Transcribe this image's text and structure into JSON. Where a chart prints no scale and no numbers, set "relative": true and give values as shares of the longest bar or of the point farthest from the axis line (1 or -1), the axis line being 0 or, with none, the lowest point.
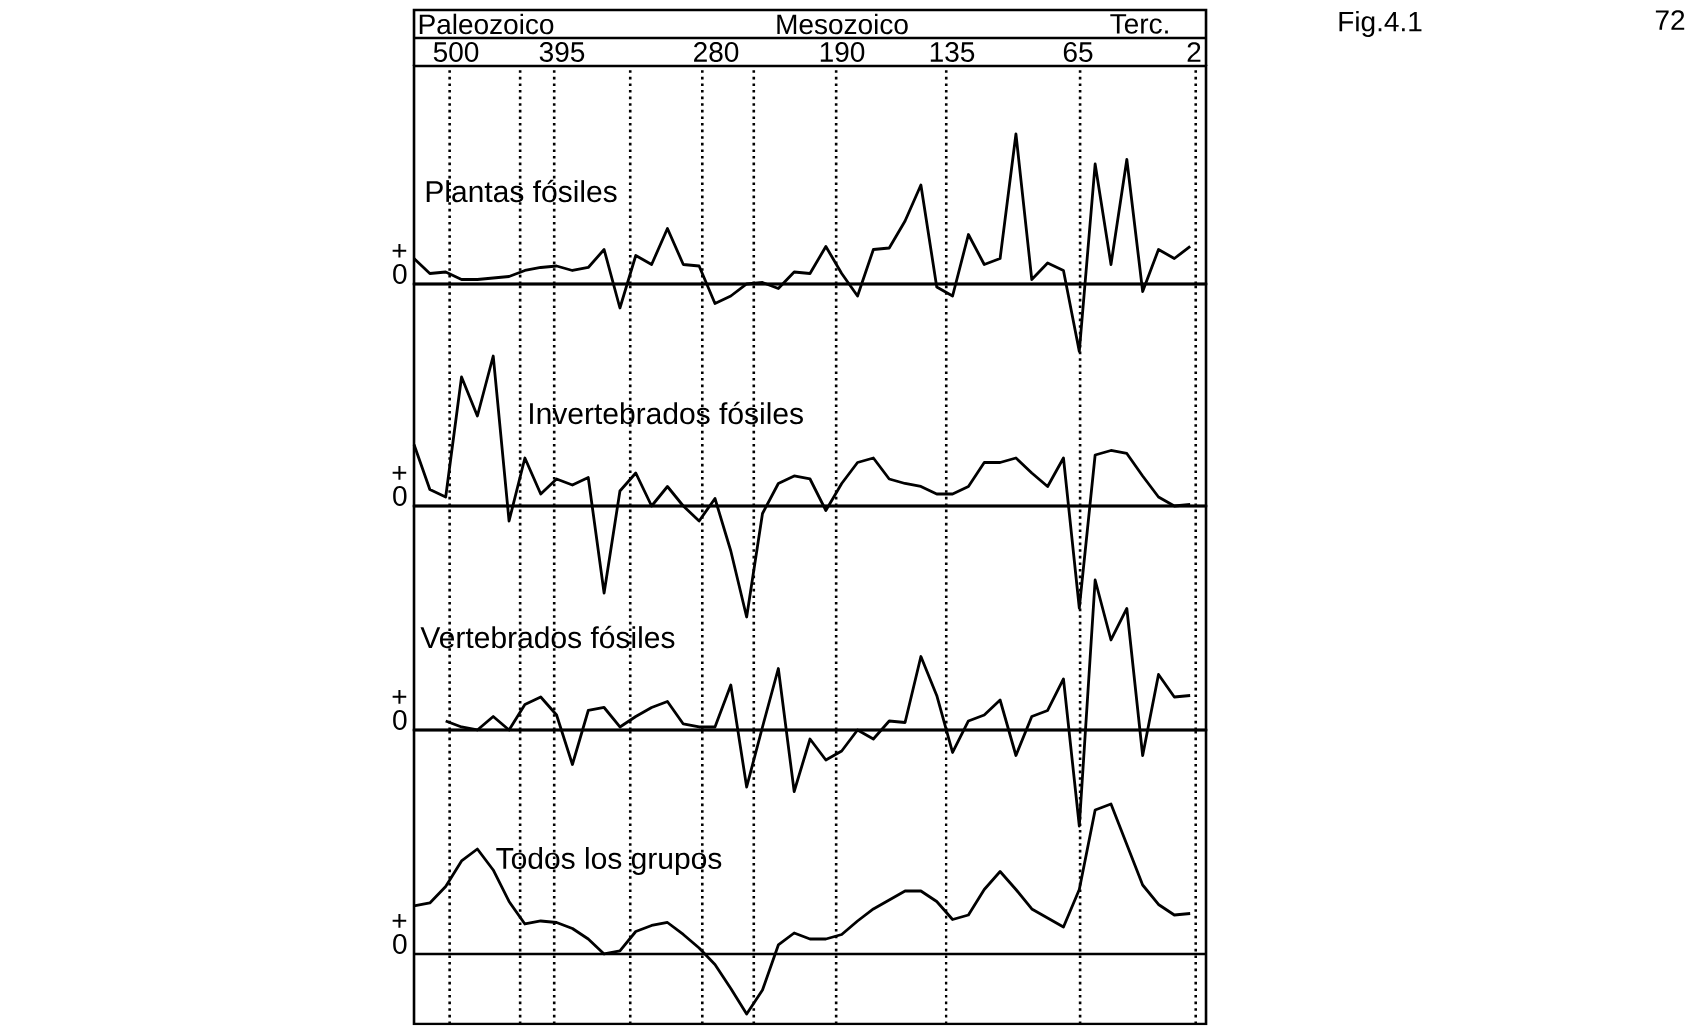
{
  "chart_data": [
    {
      "type": "line",
      "relative": true,
      "title": "Plantas fósiles",
      "color": "#000000",
      "grid": "x",
      "categories": [
        null,
        null,
        null,
        null,
        null,
        null,
        null,
        null,
        null,
        null,
        null,
        null,
        null,
        null,
        null,
        null,
        null,
        null,
        null,
        null,
        null,
        null,
        null,
        null,
        null,
        null,
        null,
        null,
        null,
        null,
        null,
        null,
        null,
        null,
        null,
        null,
        null,
        null,
        null,
        null,
        null,
        null,
        null,
        null,
        null,
        null,
        null,
        null,
        null,
        null,
        null
      ],
      "annotations": [
        "+",
        "0",
        "Fig.4.1",
        "72",
        "Paleozoico",
        "Mesozoico",
        "Terc.",
        "500",
        "395",
        "280",
        "190",
        "135",
        "65",
        "2"
      ],
      "values": [
        0.17,
        0.07,
        0.08,
        0.03,
        0.03,
        0.04,
        0.05,
        0.09,
        0.11,
        0.12,
        0.09,
        0.11,
        0.23,
        -0.16,
        0.19,
        0.13,
        0.37,
        0.13,
        0.12,
        -0.13,
        -0.08,
        0.0,
        0.01,
        -0.03,
        0.08,
        0.07,
        0.25,
        0.07,
        -0.08,
        0.23,
        0.24,
        0.42,
        0.66,
        -0.02,
        -0.08,
        0.33,
        0.13,
        0.17,
        1.0,
        0.03,
        0.14,
        0.09,
        -0.45,
        0.8,
        0.13,
        0.83,
        -0.05,
        0.23,
        0.17,
        0.25,
        null
      ]
    },
    {
      "type": "line",
      "relative": true,
      "title": "Invertebrados fósiles",
      "color": "#000000",
      "grid": "x",
      "categories": [
        null,
        null,
        null,
        null,
        null,
        null,
        null,
        null,
        null,
        null,
        null,
        null,
        null,
        null,
        null,
        null,
        null,
        null,
        null,
        null,
        null,
        null,
        null,
        null,
        null,
        null,
        null,
        null,
        null,
        null,
        null,
        null,
        null,
        null,
        null,
        null,
        null,
        null,
        null,
        null,
        null,
        null,
        null,
        null,
        null,
        null,
        null,
        null,
        null,
        null,
        null
      ],
      "annotations": [
        "+",
        "0"
      ],
      "values": [
        0.41,
        0.11,
        0.06,
        0.86,
        0.6,
        1.0,
        -0.1,
        0.32,
        0.08,
        0.18,
        0.14,
        0.19,
        -0.58,
        0.1,
        0.22,
        0.0,
        0.13,
        0.0,
        -0.1,
        0.05,
        -0.3,
        -0.74,
        -0.05,
        0.15,
        0.2,
        0.18,
        -0.03,
        0.15,
        0.29,
        0.32,
        0.18,
        0.15,
        0.13,
        0.08,
        0.08,
        0.13,
        0.29,
        0.29,
        0.32,
        0.22,
        0.13,
        0.32,
        -0.68,
        0.34,
        0.37,
        0.35,
        0.2,
        0.06,
        0.0,
        0.01,
        null
      ]
    },
    {
      "type": "line",
      "relative": true,
      "title": "Vertebrados fósiles",
      "color": "#000000",
      "grid": "x",
      "categories": [
        null,
        null,
        null,
        null,
        null,
        null,
        null,
        null,
        null,
        null,
        null,
        null,
        null,
        null,
        null,
        null,
        null,
        null,
        null,
        null,
        null,
        null,
        null,
        null,
        null,
        null,
        null,
        null,
        null,
        null,
        null,
        null,
        null,
        null,
        null,
        null,
        null,
        null,
        null,
        null,
        null,
        null,
        null,
        null,
        null,
        null,
        null,
        null,
        null,
        null,
        null
      ],
      "annotations": [
        "+",
        "0"
      ],
      "values": [
        null,
        null,
        0.06,
        0.02,
        0.0,
        0.09,
        0.0,
        0.17,
        0.22,
        0.1,
        -0.23,
        0.13,
        0.15,
        0.02,
        0.09,
        0.15,
        0.19,
        0.04,
        0.02,
        0.02,
        0.3,
        -0.38,
        0.02,
        0.41,
        -0.41,
        -0.06,
        -0.2,
        -0.14,
        0.0,
        -0.06,
        0.06,
        0.05,
        0.49,
        0.23,
        -0.15,
        0.06,
        0.1,
        0.2,
        -0.17,
        0.09,
        0.13,
        0.34,
        -0.64,
        1.0,
        0.6,
        0.81,
        -0.17,
        0.37,
        0.22,
        0.23,
        null
      ]
    },
    {
      "type": "line",
      "relative": true,
      "title": "Todos los grupos",
      "color": "#000000",
      "grid": "x",
      "categories": [
        null,
        null,
        null,
        null,
        null,
        null,
        null,
        null,
        null,
        null,
        null,
        null,
        null,
        null,
        null,
        null,
        null,
        null,
        null,
        null,
        null,
        null,
        null,
        null,
        null,
        null,
        null,
        null,
        null,
        null,
        null,
        null,
        null,
        null,
        null,
        null,
        null,
        null,
        null,
        null,
        null,
        null,
        null,
        null,
        null,
        null,
        null,
        null,
        null,
        null,
        null
      ],
      "annotations": [
        "+",
        "0"
      ],
      "values": [
        0.32,
        0.34,
        0.45,
        0.62,
        0.7,
        0.56,
        0.35,
        0.2,
        0.22,
        0.21,
        0.17,
        0.1,
        0.0,
        0.02,
        0.15,
        0.19,
        0.21,
        0.13,
        0.04,
        -0.07,
        -0.23,
        -0.4,
        -0.24,
        0.06,
        0.14,
        0.1,
        0.1,
        0.13,
        0.22,
        0.3,
        0.36,
        0.42,
        0.42,
        0.35,
        0.23,
        0.26,
        0.43,
        0.55,
        0.43,
        0.3,
        0.24,
        0.18,
        0.43,
        0.96,
        1.0,
        0.73,
        0.46,
        0.33,
        0.26,
        0.27,
        null
      ]
    }
  ]
}
